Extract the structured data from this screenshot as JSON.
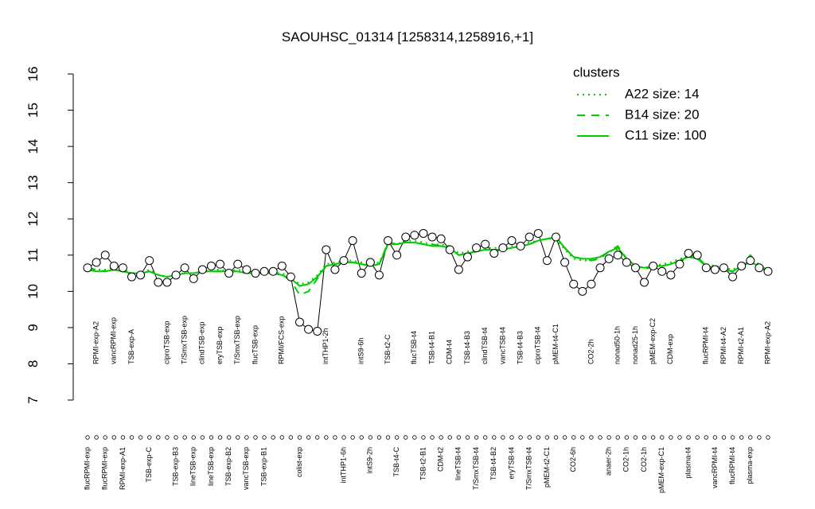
{
  "chart_data": {
    "type": "line",
    "title": "SAOUHSC_01314 [1258314,1258916,+1]",
    "categories": [
      "flucRPMI-exp",
      "RPMI-exp-A2",
      "flucRPMI-exp",
      "vancRPMI-exp",
      "RPMI-exp-A1",
      "TSB-exp-A",
      null,
      "TSB-exp-C",
      null,
      "ciproTSB-exp",
      "TSB-exp-B3",
      "T/SmxTSB-exp",
      "lineTSB-exp",
      "clindTSB-exp",
      "lineTSB-exp",
      "eryTSB-exp",
      "TSB-exp-B2",
      "T/SmxTSB-exp",
      "vancTSB-exp",
      "flucTSB-exp",
      "TSB-exp-B1",
      null,
      "RPMI/FCS-exp",
      null,
      "colist-exp",
      null,
      null,
      "intTHP1-2h",
      null,
      "intTHP1-6h",
      null,
      "intS9-6h",
      "intS9-2h",
      null,
      "TSB-t2-C",
      "TSB-t4-C",
      null,
      "flucTSB-t4",
      "TSB-t2-B1",
      "TSB-t4-B1",
      "CDM-t2",
      "CDM-t4",
      "lineTSB-t4",
      "TSB-t4-B3",
      "T/SmxTSB-t4",
      "clindTSB-t4",
      "TSB-t4-B2",
      "vancTSB-t4",
      "eryTSB-t4",
      "TSB-t4-B3",
      "T/SmxTSB-t4",
      "ciproTSB-t4",
      "pMEM-t2-C1",
      "pMEM-t4-C1",
      null,
      "CO2-6h",
      null,
      "CO2-2h",
      null,
      "anaer-2h",
      "nonad50-1h",
      "CO2-1h",
      "nonad25-1h",
      "CO2-1h",
      "pMEM-exp-C2",
      "pMEM-exp-C1",
      "CDM-exp",
      null,
      "plasma-t4",
      null,
      "flucRPMI-t4",
      "vancRPMI-t4",
      "RPMI-t4-A2",
      "flucRPMI-t4",
      "RPMI-t2-A1",
      "plasma-exp",
      null,
      "RPMI-exp-A2"
    ],
    "series": [
      {
        "name": "SAOUHSC_01314",
        "color": "#000000",
        "values": [
          10.65,
          10.8,
          11.0,
          10.7,
          10.65,
          10.4,
          10.45,
          10.85,
          10.25,
          10.25,
          10.45,
          10.65,
          10.35,
          10.6,
          10.7,
          10.75,
          10.5,
          10.75,
          10.6,
          10.5,
          10.55,
          10.55,
          10.7,
          10.4,
          9.15,
          8.95,
          8.9,
          11.15,
          10.6,
          10.85,
          11.4,
          10.5,
          10.8,
          10.45,
          11.4,
          11.0,
          11.5,
          11.55,
          11.6,
          11.5,
          11.45,
          11.15,
          10.6,
          10.95,
          11.2,
          11.3,
          11.05,
          11.2,
          11.4,
          11.25,
          11.5,
          11.6,
          10.85,
          11.5,
          10.8,
          10.2,
          10.0,
          10.2,
          10.65,
          10.9,
          11.0,
          10.8,
          10.65,
          10.25,
          10.7,
          10.55,
          10.45,
          10.75,
          11.05,
          11.0,
          10.65,
          10.6,
          10.65,
          10.4,
          10.7,
          10.85,
          10.65,
          10.55
        ]
      },
      {
        "name": "A22 size: 14",
        "color": "#00cc00",
        "dash": "dotted",
        "values": [
          10.6,
          10.6,
          10.6,
          10.65,
          10.6,
          10.5,
          10.5,
          10.6,
          10.45,
          10.4,
          10.45,
          10.5,
          10.5,
          10.55,
          10.6,
          10.6,
          10.55,
          10.6,
          10.55,
          10.5,
          10.5,
          10.5,
          10.5,
          10.4,
          10.2,
          10.25,
          10.45,
          10.75,
          10.8,
          10.85,
          10.85,
          10.8,
          10.75,
          10.8,
          11.3,
          11.3,
          11.4,
          11.4,
          11.35,
          11.3,
          11.3,
          11.25,
          11.05,
          11.1,
          11.15,
          11.2,
          11.2,
          11.2,
          11.25,
          11.3,
          11.35,
          11.4,
          11.45,
          11.45,
          11.15,
          10.9,
          10.85,
          10.85,
          10.95,
          11.1,
          11.15,
          10.9,
          10.7,
          10.65,
          10.7,
          10.75,
          10.8,
          10.9,
          10.95,
          10.9,
          10.75,
          10.7,
          10.65,
          10.6,
          10.75,
          10.9,
          10.75,
          10.6
        ]
      },
      {
        "name": "B14 size: 20",
        "color": "#00cc00",
        "dash": "dashed",
        "values": [
          10.65,
          10.6,
          10.55,
          10.6,
          10.55,
          10.5,
          10.5,
          10.55,
          10.45,
          10.4,
          10.45,
          10.5,
          10.5,
          10.55,
          10.55,
          10.55,
          10.55,
          10.55,
          10.5,
          10.5,
          10.5,
          10.5,
          10.45,
          10.3,
          9.9,
          10.0,
          10.35,
          10.7,
          10.75,
          10.8,
          10.8,
          10.75,
          10.7,
          10.75,
          11.35,
          11.3,
          11.35,
          11.35,
          11.3,
          11.3,
          11.25,
          11.2,
          11.0,
          11.05,
          11.1,
          11.15,
          11.15,
          11.15,
          11.2,
          11.25,
          11.3,
          11.4,
          11.45,
          11.5,
          11.2,
          10.95,
          10.9,
          10.85,
          10.9,
          11.1,
          11.25,
          10.9,
          10.7,
          10.6,
          10.7,
          10.7,
          10.75,
          10.85,
          11.0,
          10.95,
          10.7,
          10.65,
          10.6,
          10.55,
          10.7,
          11.0,
          10.7,
          10.6
        ]
      },
      {
        "name": "C11 size: 100",
        "color": "#00cc00",
        "dash": "solid",
        "values": [
          10.6,
          10.55,
          10.55,
          10.6,
          10.55,
          10.5,
          10.5,
          10.55,
          10.45,
          10.4,
          10.45,
          10.5,
          10.5,
          10.55,
          10.55,
          10.55,
          10.55,
          10.55,
          10.5,
          10.5,
          10.5,
          10.5,
          10.45,
          10.35,
          10.15,
          10.2,
          10.4,
          10.7,
          10.75,
          10.8,
          10.8,
          10.75,
          10.7,
          10.75,
          11.3,
          11.3,
          11.35,
          11.35,
          11.3,
          11.25,
          11.25,
          11.2,
          11.0,
          11.05,
          11.1,
          11.15,
          11.15,
          11.15,
          11.2,
          11.25,
          11.3,
          11.4,
          11.45,
          11.5,
          11.2,
          10.95,
          10.9,
          10.9,
          10.95,
          11.1,
          11.2,
          10.9,
          10.7,
          10.65,
          10.7,
          10.7,
          10.75,
          10.85,
          10.95,
          10.9,
          10.7,
          10.65,
          10.6,
          10.55,
          10.7,
          10.8,
          10.7,
          10.6
        ]
      }
    ],
    "legend_title": "clusters",
    "legend": "topright",
    "ylim": [
      7,
      16
    ],
    "yticks": [
      7,
      8,
      9,
      10,
      11,
      12,
      13,
      14,
      15,
      16
    ]
  }
}
